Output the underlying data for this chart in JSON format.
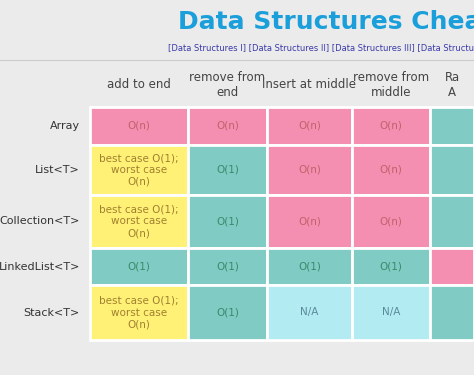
{
  "title": "Data Structures Chea",
  "subtitle": "[Data Structures I] [Data Structures II] [Data Structures III] [Data Structures I",
  "title_color": "#1a9fdb",
  "subtitle_color": "#3a3aaa",
  "background_color": "#ebebeb",
  "columns": [
    "add to end",
    "remove from\nend",
    "insert at middle",
    "remove from\nmiddle",
    "Ra\nA"
  ],
  "rows": [
    "Array",
    "List<T>",
    "Collection<T>",
    "LinkedList<T>",
    "Stack<T>"
  ],
  "cells": [
    [
      "O(n)",
      "O(n)",
      "O(n)",
      "O(n)",
      ""
    ],
    [
      "best case O(1);\nworst case\nO(n)",
      "O(1)",
      "O(n)",
      "O(n)",
      ""
    ],
    [
      "best case O(1);\nworst case\nO(n)",
      "O(1)",
      "O(n)",
      "O(n)",
      ""
    ],
    [
      "O(1)",
      "O(1)",
      "O(1)",
      "O(1)",
      ""
    ],
    [
      "best case O(1);\nworst case\nO(n)",
      "O(1)",
      "N/A",
      "N/A",
      ""
    ]
  ],
  "cell_colors": [
    [
      "#f48fb1",
      "#f48fb1",
      "#f48fb1",
      "#f48fb1",
      "#80cbc4"
    ],
    [
      "#fff176",
      "#80cbc4",
      "#f48fb1",
      "#f48fb1",
      "#80cbc4"
    ],
    [
      "#fff176",
      "#80cbc4",
      "#f48fb1",
      "#f48fb1",
      "#80cbc4"
    ],
    [
      "#80cbc4",
      "#80cbc4",
      "#80cbc4",
      "#80cbc4",
      "#f48fb1"
    ],
    [
      "#fff176",
      "#80cbc4",
      "#b2ebf2",
      "#b2ebf2",
      "#80cbc4"
    ]
  ],
  "row_label_color": "#333333",
  "cell_text_color": "#c0626a",
  "teal_text_color": "#4a9a7a",
  "yellow_text_color": "#a08030",
  "light_blue_text_color": "#5a8a9a",
  "pink_cell_text": "#c0626a",
  "teal_cell_text": "#3a8a6a",
  "col_header_fontsize": 8.5,
  "row_label_fontsize": 8,
  "cell_fontsize": 7.5,
  "title_fontsize": 18,
  "subtitle_fontsize": 6
}
